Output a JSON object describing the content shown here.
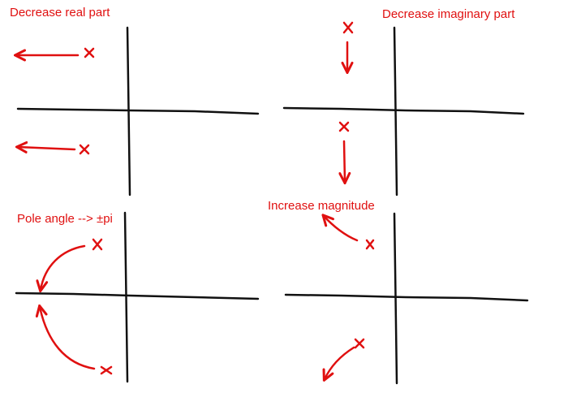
{
  "colors": {
    "ink": "#111111",
    "annotation": "#e01010"
  },
  "panels": [
    {
      "id": "decrease-real",
      "label": "Decrease real part"
    },
    {
      "id": "decrease-imaginary",
      "label": "Decrease imaginary part"
    },
    {
      "id": "pole-angle",
      "label": "Pole angle --> ±pi"
    },
    {
      "id": "increase-magnitude",
      "label": "Increase magnitude"
    }
  ],
  "markers": {
    "pole_glyph": "x"
  }
}
